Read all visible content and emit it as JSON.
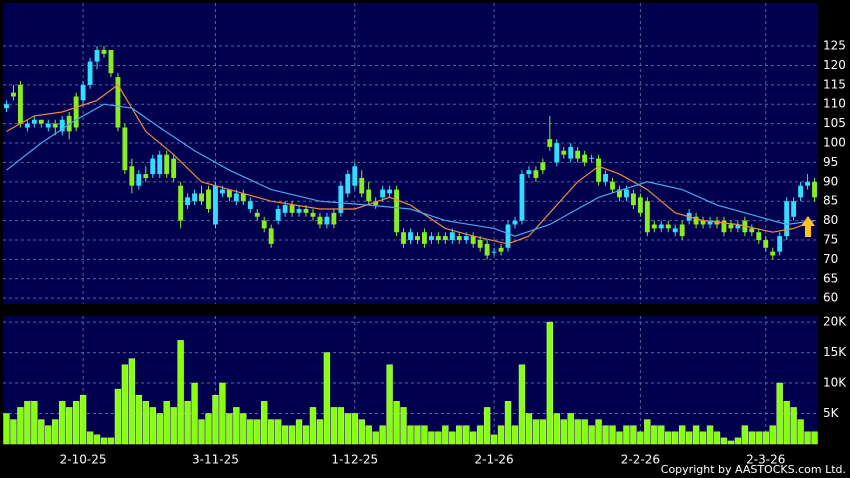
{
  "chart_data": [
    {
      "type": "candlestick",
      "categories": [
        null,
        null,
        null,
        null,
        null,
        null,
        null,
        null,
        null,
        null,
        null,
        "2-10-25",
        null,
        null,
        null,
        null,
        null,
        null,
        null,
        null,
        null,
        null,
        null,
        null,
        null,
        null,
        null,
        null,
        null,
        null,
        "3-11-25",
        null,
        null,
        null,
        null,
        null,
        null,
        null,
        null,
        null,
        null,
        null,
        null,
        null,
        null,
        null,
        null,
        null,
        null,
        null,
        "1-12-25",
        null,
        null,
        null,
        null,
        null,
        null,
        null,
        null,
        null,
        null,
        null,
        null,
        null,
        null,
        null,
        null,
        null,
        null,
        null,
        "2-1-26",
        null,
        null,
        null,
        null,
        null,
        null,
        null,
        null,
        null,
        null,
        null,
        null,
        null,
        null,
        null,
        null,
        null,
        null,
        null,
        null,
        "2-2-26",
        null,
        null,
        null,
        null,
        null,
        null,
        null,
        null,
        null,
        null,
        null,
        null,
        null,
        null,
        null,
        null,
        null,
        "2-3-26",
        null,
        null,
        null,
        null,
        null,
        null,
        null
      ],
      "ohlc": [
        [
          109,
          111,
          108,
          110
        ],
        [
          113,
          115,
          111,
          112
        ],
        [
          115,
          116,
          104,
          105
        ],
        [
          104,
          106,
          103,
          105
        ],
        [
          105,
          107,
          104,
          106
        ],
        [
          106,
          106,
          104,
          105
        ],
        [
          104,
          106,
          103,
          105
        ],
        [
          105,
          106,
          102,
          104
        ],
        [
          103,
          107,
          102,
          106
        ],
        [
          107,
          108,
          101,
          103
        ],
        [
          112,
          113,
          103,
          104
        ],
        [
          111,
          116,
          110,
          115
        ],
        [
          115,
          122,
          114,
          121
        ],
        [
          121,
          125,
          119,
          124
        ],
        [
          124,
          125,
          122,
          123
        ],
        [
          124,
          124,
          117,
          118
        ],
        [
          117,
          118,
          103,
          104
        ],
        [
          104,
          105,
          92,
          93
        ],
        [
          94,
          96,
          87,
          89
        ],
        [
          89,
          93,
          88,
          92
        ],
        [
          92,
          94,
          90,
          91
        ],
        [
          92,
          97,
          91,
          96
        ],
        [
          92,
          98,
          91,
          97
        ],
        [
          97,
          98,
          91,
          92
        ],
        [
          96,
          97,
          90,
          91
        ],
        [
          89,
          90,
          78,
          80
        ],
        [
          84,
          87,
          83,
          86
        ],
        [
          85,
          88,
          84,
          87
        ],
        [
          87,
          89,
          84,
          85
        ],
        [
          88,
          89,
          82,
          83
        ],
        [
          79,
          90,
          78,
          89
        ],
        [
          87,
          89,
          86,
          88
        ],
        [
          88,
          88,
          85,
          86
        ],
        [
          85,
          88,
          84,
          87
        ],
        [
          87,
          88,
          84,
          85
        ],
        [
          83,
          86,
          82,
          85
        ],
        [
          82,
          83,
          80,
          81
        ],
        [
          80,
          81,
          77,
          78
        ],
        [
          78,
          79,
          73,
          74
        ],
        [
          80,
          84,
          79,
          83
        ],
        [
          82,
          85,
          81,
          84
        ],
        [
          84,
          85,
          81,
          82
        ],
        [
          82,
          84,
          81,
          83
        ],
        [
          83,
          84,
          81,
          82
        ],
        [
          82,
          83,
          80,
          81
        ],
        [
          81,
          82,
          78,
          79
        ],
        [
          79,
          82,
          78,
          81
        ],
        [
          82,
          83,
          78,
          79
        ],
        [
          82,
          90,
          81,
          89
        ],
        [
          87,
          93,
          86,
          92
        ],
        [
          89,
          95,
          88,
          94
        ],
        [
          91,
          93,
          86,
          87
        ],
        [
          88,
          90,
          84,
          85
        ],
        [
          85,
          86,
          83,
          84
        ],
        [
          86,
          89,
          85,
          88
        ],
        [
          87,
          89,
          86,
          88
        ],
        [
          88,
          89,
          76,
          77
        ],
        [
          77,
          78,
          73,
          74
        ],
        [
          75,
          78,
          74,
          77
        ],
        [
          76,
          77,
          74,
          75
        ],
        [
          77,
          78,
          73,
          74
        ],
        [
          75,
          77,
          74,
          76
        ],
        [
          76,
          77,
          74,
          75
        ],
        [
          76,
          77,
          74,
          75
        ],
        [
          75,
          78,
          74,
          77
        ],
        [
          76,
          77,
          74,
          75
        ],
        [
          75,
          77,
          74,
          76
        ],
        [
          76,
          77,
          73,
          74
        ],
        [
          75,
          76,
          72,
          73
        ],
        [
          74,
          75,
          70,
          71
        ],
        [
          72,
          73,
          71,
          72
        ],
        [
          73,
          74,
          71,
          72
        ],
        [
          73,
          80,
          72,
          79
        ],
        [
          79,
          81,
          78,
          80
        ],
        [
          80,
          93,
          79,
          92
        ],
        [
          92,
          94,
          91,
          93
        ],
        [
          93,
          94,
          90,
          91
        ],
        [
          95,
          96,
          92,
          93
        ],
        [
          101,
          107,
          98,
          99
        ],
        [
          95,
          101,
          94,
          100
        ],
        [
          98,
          99,
          96,
          97
        ],
        [
          96,
          100,
          95,
          99
        ],
        [
          98,
          99,
          95,
          96
        ],
        [
          97,
          98,
          94,
          95
        ],
        [
          96,
          97,
          95,
          96.2
        ],
        [
          96,
          97,
          89,
          90
        ],
        [
          90,
          93,
          89,
          92
        ],
        [
          90,
          91,
          87,
          88
        ],
        [
          88,
          89,
          85,
          86
        ],
        [
          86,
          89,
          85,
          88
        ],
        [
          87,
          88,
          83,
          84
        ],
        [
          86,
          87,
          81,
          82
        ],
        [
          85,
          86,
          76,
          77
        ],
        [
          79,
          80,
          77,
          78
        ],
        [
          78,
          80,
          77,
          79
        ],
        [
          79,
          80,
          77,
          78
        ],
        [
          77,
          79,
          76,
          78
        ],
        [
          79,
          80,
          75,
          76
        ],
        [
          80,
          83,
          79,
          82
        ],
        [
          81,
          82,
          78,
          79
        ],
        [
          80,
          81,
          78,
          79
        ],
        [
          79,
          81,
          78,
          80
        ],
        [
          80,
          81,
          78,
          79
        ],
        [
          80,
          81,
          76,
          77
        ],
        [
          79,
          80,
          77,
          78
        ],
        [
          78,
          80,
          77,
          79
        ],
        [
          80,
          81,
          76,
          77
        ],
        [
          78,
          79,
          76,
          77
        ],
        [
          77,
          78,
          74,
          75
        ],
        [
          75,
          76,
          72,
          73
        ],
        [
          72,
          73,
          70,
          71
        ],
        [
          72,
          77,
          71,
          76
        ],
        [
          76,
          86,
          75,
          85
        ],
        [
          81,
          86,
          80,
          85
        ],
        [
          86,
          90,
          85,
          89
        ],
        [
          89,
          92,
          88,
          90
        ],
        [
          90,
          91,
          85,
          86
        ]
      ],
      "up_color": "#33ddff",
      "down_color": "#88ee22",
      "lines": [
        {
          "color": "#f08a3c",
          "x": [
            0,
            4,
            8,
            13,
            16,
            20,
            24,
            28,
            32,
            38,
            45,
            50,
            55,
            58,
            63,
            67,
            72,
            75,
            78,
            82,
            85,
            88,
            92,
            96,
            100,
            105,
            110,
            113,
            116
          ],
          "values": [
            103,
            107,
            108,
            111,
            115,
            103,
            97,
            90,
            88,
            85,
            83,
            83,
            86,
            84,
            78,
            76,
            74,
            76,
            82,
            90,
            94,
            92,
            88,
            82,
            80,
            79,
            77,
            78,
            80
          ]
        },
        {
          "color": "#4aa8ee",
          "x": [
            0,
            5,
            10,
            14,
            18,
            22,
            27,
            32,
            38,
            45,
            52,
            58,
            63,
            70,
            73,
            78,
            85,
            92,
            97,
            102,
            108,
            112,
            116
          ],
          "values": [
            93,
            100,
            106,
            110,
            109,
            104,
            98,
            93,
            88,
            85,
            84,
            83,
            80,
            78,
            76,
            79,
            86,
            90,
            88,
            84,
            81,
            79,
            80
          ]
        }
      ],
      "ylim": [
        58.5,
        136.1
      ],
      "yticks": [
        60,
        65,
        70,
        75,
        80,
        85,
        90,
        95,
        100,
        105,
        110,
        115,
        120,
        125
      ],
      "grid": true
    },
    {
      "type": "bar",
      "color": "#88ff11",
      "values": [
        5000,
        4000,
        6000,
        7000,
        7000,
        4000,
        3000,
        4000,
        7000,
        6000,
        7000,
        8000,
        2000,
        1500,
        1000,
        1000,
        9000,
        13000,
        14000,
        8000,
        7000,
        6000,
        5000,
        7000,
        6000,
        17000,
        7000,
        10000,
        4000,
        5000,
        8000,
        10000,
        5000,
        6000,
        5000,
        4000,
        4000,
        7000,
        4000,
        4000,
        3000,
        3000,
        4000,
        3000,
        6000,
        4000,
        15000,
        6000,
        6000,
        5000,
        5000,
        4000,
        3000,
        2000,
        3000,
        13000,
        7000,
        6000,
        3000,
        3000,
        3000,
        2000,
        2000,
        3000,
        2000,
        3000,
        3000,
        2000,
        3000,
        6000,
        1500,
        3000,
        7000,
        3000,
        13000,
        5000,
        4000,
        4000,
        20000,
        5000,
        4000,
        5000,
        4000,
        4000,
        3000,
        4000,
        3000,
        3000,
        2000,
        3000,
        3000,
        2000,
        4000,
        3000,
        3000,
        2000,
        2000,
        3000,
        2000,
        3000,
        2000,
        3000,
        2000,
        1000,
        500,
        1000,
        3000,
        2000,
        2000,
        2000,
        3000,
        10000,
        7000,
        6000,
        4000,
        2000,
        2000
      ],
      "ylim": [
        0,
        21000
      ],
      "yticks": [
        {
          "value": 5000,
          "label": "5K"
        },
        {
          "value": 10000,
          "label": "10K"
        },
        {
          "value": 15000,
          "label": "15K"
        },
        {
          "value": 20000,
          "label": "20K"
        }
      ],
      "grid": true
    }
  ],
  "footer": "Copyright by AASTOCKS.com Ltd."
}
